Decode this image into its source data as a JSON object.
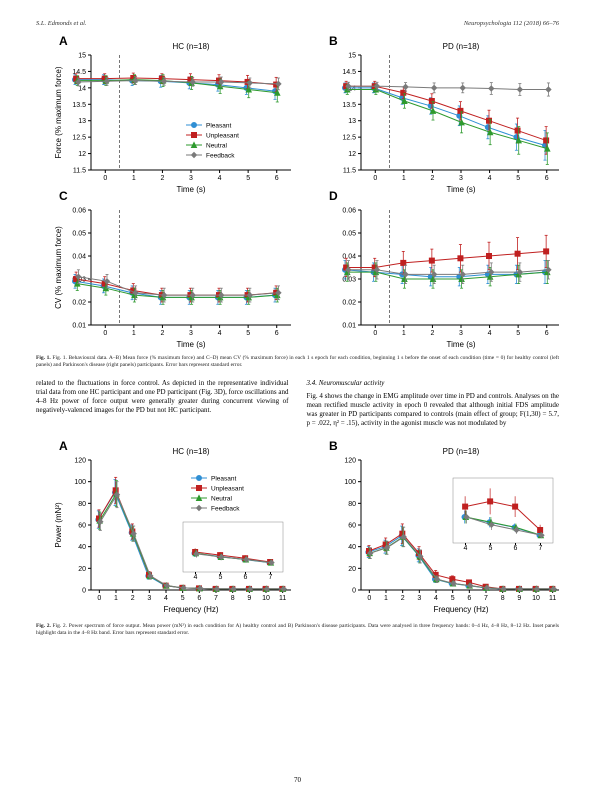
{
  "header": {
    "left": "S.L. Edmonds et al.",
    "right": "Neuropsychologia 112 (2018) 66–76"
  },
  "pagenum": "70",
  "colors": {
    "pleasant": "#2f8fd4",
    "unpleasant": "#c02020",
    "neutral": "#2e9a2e",
    "feedback": "#7a7a7a",
    "axis": "#000000",
    "dashed": "#555555"
  },
  "legend": [
    {
      "key": "pleasant",
      "label": "Pleasant"
    },
    {
      "key": "unpleasant",
      "label": "Unpleasant"
    },
    {
      "key": "neutral",
      "label": "Neutral"
    },
    {
      "key": "feedback",
      "label": "Feedback"
    }
  ],
  "fig1": {
    "A": {
      "label": "A",
      "title": "HC (n=18)",
      "ylabel": "Force (% maximum force)",
      "xlabel": "Time (s)",
      "ylim": [
        11.5,
        15.0
      ],
      "yticks": [
        11.5,
        12.0,
        12.5,
        13.0,
        13.5,
        14.0,
        14.5,
        15.0
      ],
      "xlim": [
        -0.5,
        6.5
      ],
      "xticks": [
        0,
        1,
        2,
        3,
        4,
        5,
        6
      ],
      "dashed_x": 0.5,
      "series": {
        "pleasant": {
          "y": [
            14.25,
            14.25,
            14.22,
            14.2,
            14.15,
            14.1,
            14.0,
            13.9
          ],
          "err": [
            0.15,
            0.15,
            0.15,
            0.18,
            0.18,
            0.2,
            0.2,
            0.25
          ]
        },
        "unpleasant": {
          "y": [
            14.28,
            14.28,
            14.3,
            14.28,
            14.25,
            14.22,
            14.18,
            14.1
          ],
          "err": [
            0.15,
            0.15,
            0.15,
            0.15,
            0.18,
            0.18,
            0.2,
            0.22
          ]
        },
        "neutral": {
          "y": [
            14.22,
            14.22,
            14.25,
            14.22,
            14.15,
            14.05,
            13.95,
            13.85
          ],
          "err": [
            0.15,
            0.15,
            0.15,
            0.18,
            0.2,
            0.22,
            0.25,
            0.28
          ]
        },
        "feedback": {
          "y": [
            14.18,
            14.2,
            14.22,
            14.2,
            14.18,
            14.18,
            14.15,
            14.12
          ],
          "err": [
            0.12,
            0.12,
            0.12,
            0.12,
            0.13,
            0.15,
            0.15,
            0.18
          ]
        }
      }
    },
    "B": {
      "label": "B",
      "title": "PD (n=18)",
      "ylabel": "",
      "xlabel": "Time (s)",
      "ylim": [
        11.5,
        15.0
      ],
      "yticks": [
        11.5,
        12.0,
        12.5,
        13.0,
        13.5,
        14.0,
        14.5,
        15.0
      ],
      "xlim": [
        -0.5,
        6.5
      ],
      "xticks": [
        0,
        1,
        2,
        3,
        4,
        5,
        6
      ],
      "dashed_x": 0.5,
      "series": {
        "pleasant": {
          "y": [
            14.0,
            14.0,
            13.7,
            13.45,
            13.15,
            12.8,
            12.5,
            12.25
          ],
          "err": [
            0.15,
            0.15,
            0.2,
            0.25,
            0.3,
            0.35,
            0.4,
            0.45
          ]
        },
        "unpleasant": {
          "y": [
            14.05,
            14.05,
            13.85,
            13.6,
            13.3,
            13.0,
            12.7,
            12.4
          ],
          "err": [
            0.15,
            0.15,
            0.18,
            0.22,
            0.28,
            0.32,
            0.38,
            0.42
          ]
        },
        "neutral": {
          "y": [
            13.95,
            13.95,
            13.6,
            13.3,
            12.95,
            12.65,
            12.4,
            12.15
          ],
          "err": [
            0.15,
            0.15,
            0.22,
            0.28,
            0.32,
            0.38,
            0.42,
            0.48
          ]
        },
        "feedback": {
          "y": [
            14.05,
            14.05,
            14.03,
            14.0,
            14.0,
            13.98,
            13.95,
            13.95
          ],
          "err": [
            0.12,
            0.12,
            0.13,
            0.15,
            0.15,
            0.18,
            0.18,
            0.2
          ]
        }
      }
    },
    "C": {
      "label": "C",
      "title": "",
      "ylabel": "CV (% maximum force)",
      "xlabel": "Time (s)",
      "ylim": [
        0.01,
        0.06
      ],
      "yticks": [
        0.01,
        0.02,
        0.03,
        0.04,
        0.05,
        0.06
      ],
      "xlim": [
        -0.5,
        6.5
      ],
      "xticks": [
        0,
        1,
        2,
        3,
        4,
        5,
        6
      ],
      "dashed_x": 0.5,
      "series": {
        "pleasant": {
          "y": [
            0.029,
            0.027,
            0.024,
            0.022,
            0.022,
            0.022,
            0.022,
            0.023
          ],
          "err": [
            0.003,
            0.003,
            0.003,
            0.003,
            0.003,
            0.003,
            0.003,
            0.003
          ]
        },
        "unpleasant": {
          "y": [
            0.03,
            0.028,
            0.025,
            0.023,
            0.023,
            0.023,
            0.023,
            0.024
          ],
          "err": [
            0.003,
            0.003,
            0.003,
            0.003,
            0.003,
            0.003,
            0.003,
            0.003
          ]
        },
        "neutral": {
          "y": [
            0.028,
            0.026,
            0.023,
            0.022,
            0.022,
            0.022,
            0.022,
            0.023
          ],
          "err": [
            0.003,
            0.003,
            0.003,
            0.003,
            0.003,
            0.003,
            0.003,
            0.003
          ]
        },
        "feedback": {
          "y": [
            0.031,
            0.029,
            0.024,
            0.023,
            0.023,
            0.023,
            0.023,
            0.024
          ],
          "err": [
            0.003,
            0.003,
            0.003,
            0.003,
            0.003,
            0.003,
            0.003,
            0.003
          ]
        }
      }
    },
    "D": {
      "label": "D",
      "title": "",
      "ylabel": "",
      "xlabel": "Time (s)",
      "ylim": [
        0.01,
        0.06
      ],
      "yticks": [
        0.01,
        0.02,
        0.03,
        0.04,
        0.05,
        0.06
      ],
      "xlim": [
        -0.5,
        6.5
      ],
      "xticks": [
        0,
        1,
        2,
        3,
        4,
        5,
        6
      ],
      "dashed_x": 0.5,
      "series": {
        "pleasant": {
          "y": [
            0.034,
            0.033,
            0.032,
            0.031,
            0.031,
            0.032,
            0.032,
            0.033
          ],
          "err": [
            0.004,
            0.004,
            0.004,
            0.004,
            0.004,
            0.004,
            0.004,
            0.005
          ]
        },
        "unpleasant": {
          "y": [
            0.035,
            0.035,
            0.037,
            0.038,
            0.039,
            0.04,
            0.041,
            0.042
          ],
          "err": [
            0.004,
            0.004,
            0.005,
            0.005,
            0.006,
            0.006,
            0.007,
            0.007
          ]
        },
        "neutral": {
          "y": [
            0.033,
            0.033,
            0.03,
            0.03,
            0.03,
            0.031,
            0.032,
            0.033
          ],
          "err": [
            0.004,
            0.004,
            0.004,
            0.004,
            0.004,
            0.004,
            0.004,
            0.005
          ]
        },
        "feedback": {
          "y": [
            0.034,
            0.034,
            0.032,
            0.032,
            0.032,
            0.033,
            0.033,
            0.034
          ],
          "err": [
            0.004,
            0.004,
            0.004,
            0.004,
            0.004,
            0.004,
            0.004,
            0.004
          ]
        }
      }
    }
  },
  "caption1": "Fig. 1. Behavioural data. A–B) Mean force (% maximum force) and C–D) mean CV (% maximum force) in each 1 s epoch for each condition, beginning 1 s before the onset of each condition (time = 0) for healthy control (left panels) and Parkinson's disease (right panels) participants. Error bars represent standard error.",
  "body": {
    "left": "related to the fluctuations in force control. As depicted in the representative individual trial data from one HC participant and one PD participant (Fig. 3D), force oscillations and 4–8 Hz power of force output were generally greater during concurrent viewing of negatively-valenced images for the PD but not HC participant.",
    "rightTitle": "3.4. Neuromuscular activity",
    "right": "Fig. 4 shows the change in EMG amplitude over time in PD and controls. Analyses on the mean rectified muscle activity in epoch 0 revealed that although initial FDS amplitude was greater in PD participants compared to controls (main effect of group; F(1,30) = 5.7, p = .022, η² = .15), activity in the agonist muscle was not modulated by"
  },
  "fig2": {
    "A": {
      "label": "A",
      "title": "HC (n=18)",
      "ylabel": "Power (mN²)",
      "xlabel": "Frequency (Hz)",
      "ylim": [
        0,
        120
      ],
      "yticks": [
        0,
        20,
        40,
        60,
        80,
        100,
        120
      ],
      "xlim": [
        -0.5,
        11.5
      ],
      "xticks": [
        0,
        1,
        2,
        3,
        4,
        5,
        6,
        7,
        8,
        9,
        10,
        11
      ],
      "series": {
        "pleasant": {
          "y": [
            65,
            90,
            53,
            13,
            4,
            2,
            1.5,
            1,
            1,
            1,
            1,
            1
          ],
          "err": [
            8,
            12,
            7,
            3,
            1,
            1,
            1,
            0.5,
            0.5,
            0.5,
            0.5,
            0.5
          ]
        },
        "unpleasant": {
          "y": [
            66,
            92,
            54,
            14,
            4,
            2,
            1.5,
            1,
            1,
            1,
            1,
            1
          ],
          "err": [
            8,
            12,
            7,
            3,
            1,
            1,
            1,
            0.5,
            0.5,
            0.5,
            0.5,
            0.5
          ]
        },
        "neutral": {
          "y": [
            64,
            89,
            52,
            13,
            4,
            2,
            1.5,
            1,
            1,
            1,
            1,
            1
          ],
          "err": [
            8,
            12,
            7,
            3,
            1,
            1,
            1,
            0.5,
            0.5,
            0.5,
            0.5,
            0.5
          ]
        },
        "feedback": {
          "y": [
            63,
            88,
            52,
            13,
            4,
            2,
            1.5,
            1,
            1,
            1,
            1,
            1
          ],
          "err": [
            8,
            12,
            7,
            3,
            1,
            1,
            1,
            0.5,
            0.5,
            0.5,
            0.5,
            0.5
          ]
        }
      },
      "inset": {
        "xlim": [
          3.5,
          7.5
        ],
        "xticks": [
          4,
          5,
          6,
          7
        ],
        "ylim": [
          0,
          8
        ],
        "series": {
          "pleasant": {
            "y": [
              3.0,
              2.5,
              2.0,
              1.5
            ],
            "err": [
              0.6,
              0.5,
              0.5,
              0.4
            ]
          },
          "unpleasant": {
            "y": [
              3.2,
              2.7,
              2.2,
              1.6
            ],
            "err": [
              0.6,
              0.5,
              0.5,
              0.4
            ]
          },
          "neutral": {
            "y": [
              3.0,
              2.4,
              2.0,
              1.5
            ],
            "err": [
              0.6,
              0.5,
              0.5,
              0.4
            ]
          },
          "feedback": {
            "y": [
              2.9,
              2.4,
              2.0,
              1.5
            ],
            "err": [
              0.6,
              0.5,
              0.5,
              0.4
            ]
          }
        }
      }
    },
    "B": {
      "label": "B",
      "title": "PD (n=18)",
      "ylabel": "",
      "xlabel": "Frequency (Hz)",
      "ylim": [
        0,
        120
      ],
      "yticks": [
        0,
        20,
        40,
        60,
        80,
        100,
        120
      ],
      "xlim": [
        -0.5,
        11.5
      ],
      "xticks": [
        0,
        1,
        2,
        3,
        4,
        5,
        6,
        7,
        8,
        9,
        10,
        11
      ],
      "series": {
        "pleasant": {
          "y": [
            35,
            40,
            50,
            32,
            10,
            6,
            4,
            2,
            1,
            1,
            1,
            1
          ],
          "err": [
            5,
            6,
            9,
            6,
            3,
            2,
            1.5,
            1,
            0.5,
            0.5,
            0.5,
            0.5
          ]
        },
        "unpleasant": {
          "y": [
            36,
            42,
            52,
            34,
            14,
            10,
            7,
            3,
            1,
            1,
            1,
            1
          ],
          "err": [
            5,
            6,
            9,
            6,
            4,
            3,
            2,
            1,
            0.5,
            0.5,
            0.5,
            0.5
          ]
        },
        "neutral": {
          "y": [
            34,
            39,
            49,
            31,
            10,
            6,
            4,
            2,
            1,
            1,
            1,
            1
          ],
          "err": [
            5,
            6,
            9,
            6,
            3,
            2,
            1.5,
            1,
            0.5,
            0.5,
            0.5,
            0.5
          ]
        },
        "feedback": {
          "y": [
            34,
            39,
            49,
            31,
            10,
            6,
            4,
            2,
            1,
            1,
            1,
            1
          ],
          "err": [
            5,
            6,
            9,
            6,
            3,
            2,
            1.5,
            1,
            0.5,
            0.5,
            0.5,
            0.5
          ]
        }
      },
      "inset": {
        "xlim": [
          3.5,
          7.5
        ],
        "xticks": [
          4,
          5,
          6,
          7
        ],
        "ylim": [
          0,
          25
        ],
        "series": {
          "pleasant": {
            "y": [
              10,
              8,
              6,
              3
            ],
            "err": [
              2.5,
              2,
              1.5,
              1
            ]
          },
          "unpleasant": {
            "y": [
              14,
              16,
              14,
              5
            ],
            "err": [
              4,
              5,
              4,
              2
            ]
          },
          "neutral": {
            "y": [
              10,
              8,
              6,
              3
            ],
            "err": [
              2.5,
              2,
              1.5,
              1
            ]
          },
          "feedback": {
            "y": [
              10,
              7,
              5,
              3
            ],
            "err": [
              2.5,
              2,
              1.5,
              1
            ]
          }
        }
      }
    }
  },
  "caption2": "Fig. 2. Power spectrum of force output. Mean power (mN²) in each condition for A) healthy control and B) Parkinson's disease participants. Data were analysed in three frequency bands: 0–4 Hz, 4–8 Hz, 8–12 Hz. Inset panels highlight data in the 4–8 Hz band. Error bars represent standard error."
}
